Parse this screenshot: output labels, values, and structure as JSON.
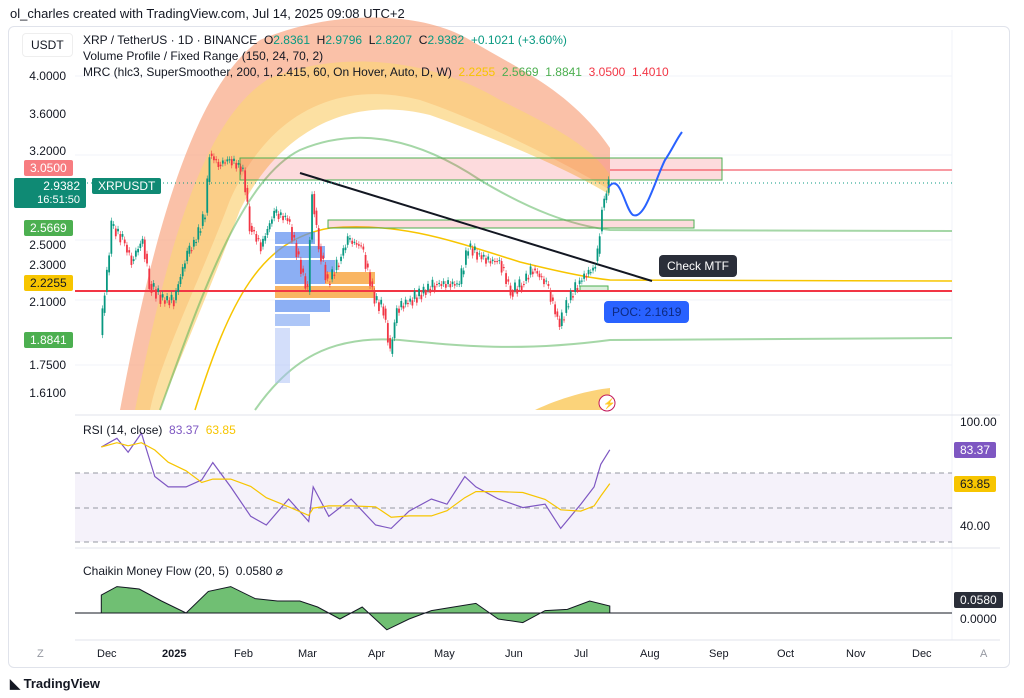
{
  "header": {
    "credit": "ol_charles created with TradingView.com, Jul 14, 2025 09:08 UTC+2",
    "currency": "USDT"
  },
  "legend": {
    "symbol": "XRP / TetherUS · 1D · BINANCE",
    "o_label": "O",
    "o": "2.8361",
    "h_label": "H",
    "h": "2.9796",
    "l_label": "L",
    "l": "2.8207",
    "c_label": "C",
    "c": "2.9382",
    "change": "+0.1021 (+3.60%)",
    "vp": "Volume Profile / Fixed Range (150, 24, 70, 2)",
    "mrc": "MRC (hlc3, SuperSmoother, 200, 1, 2.415, 60, On Hover, Auto, D, W)",
    "mrc_values": [
      "2.2255",
      "2.5669",
      "1.8841",
      "3.0500",
      "1.4010"
    ]
  },
  "colors": {
    "up": "#089981",
    "down": "#f23645",
    "rsi": "#7e57c2",
    "rsi_ma": "#f7c500",
    "poc": "#2962ff",
    "mrc_mean": "#f7c500",
    "mrc_inner": "#4caf50"
  },
  "price_axis": {
    "ticks": [
      "4.0000",
      "3.6000",
      "3.2000",
      "2.5000",
      "2.3000",
      "2.1000",
      "1.7500",
      "1.6100"
    ],
    "scale": "log"
  },
  "price_tags": {
    "upper": "3.0500",
    "last": "2.9382",
    "countdown": "16:51:50",
    "symbol": "XRPUSDT",
    "inner_upper": "2.5669",
    "mean": "2.2255",
    "inner_lower": "1.8841"
  },
  "annotations": {
    "check": "Check MTF",
    "poc": "POC: 2.1619"
  },
  "rsi": {
    "title": "RSI (14, close)",
    "value": "83.37",
    "ma": "63.85",
    "ticks": [
      "100.00",
      "40.00"
    ]
  },
  "cmf": {
    "title": "Chaikin Money Flow (20, 5)",
    "value": "0.0580",
    "tick": "0.0000"
  },
  "time_axis": {
    "labels": [
      "Dec",
      "2025",
      "Feb",
      "Mar",
      "Apr",
      "May",
      "Jun",
      "Jul",
      "Aug",
      "Sep",
      "Oct",
      "Nov",
      "Dec"
    ],
    "left_btn": "Z",
    "right_btn": "A"
  },
  "footer": {
    "brand": "TradingView"
  },
  "chart_data": {
    "type": "candlestick",
    "series": [
      {
        "x": [
          "2024-11-28",
          "2024-12-02",
          "2024-12-03",
          "2024-12-08",
          "2024-12-12",
          "2024-12-17",
          "2024-12-20",
          "2024-12-26",
          "2024-12-31",
          "2025-01-06",
          "2025-01-10",
          "2025-01-14",
          "2025-01-16",
          "2025-01-20",
          "2025-01-25",
          "2025-01-31",
          "2025-02-03",
          "2025-02-08",
          "2025-02-14",
          "2025-02-20",
          "2025-02-26",
          "2025-03-01",
          "2025-03-03",
          "2025-03-06",
          "2025-03-10",
          "2025-03-15",
          "2025-03-19",
          "2025-03-25",
          "2025-03-31",
          "2025-04-04",
          "2025-04-07",
          "2025-04-10",
          "2025-04-16",
          "2025-04-22",
          "2025-04-27",
          "2025-05-02",
          "2025-05-08",
          "2025-05-12",
          "2025-05-16",
          "2025-05-21",
          "2025-05-26",
          "2025-05-31",
          "2025-06-05",
          "2025-06-10",
          "2025-06-16",
          "2025-06-22",
          "2025-06-26",
          "2025-06-30",
          "2025-07-03",
          "2025-07-07",
          "2025-07-09",
          "2025-07-10",
          "2025-07-11",
          "2025-07-13",
          "2025-07-14"
        ],
        "close": [
          1.9,
          2.4,
          2.6,
          2.5,
          2.35,
          2.5,
          2.2,
          2.1,
          2.1,
          2.4,
          2.5,
          2.7,
          3.2,
          3.1,
          3.15,
          3.05,
          2.6,
          2.45,
          2.7,
          2.65,
          2.3,
          2.15,
          2.85,
          2.45,
          2.2,
          2.35,
          2.5,
          2.45,
          2.1,
          2.05,
          1.8,
          2.05,
          2.1,
          2.15,
          2.2,
          2.2,
          2.2,
          2.45,
          2.4,
          2.35,
          2.35,
          2.15,
          2.2,
          2.3,
          2.2,
          1.95,
          2.1,
          2.2,
          2.25,
          2.3,
          2.4,
          2.56,
          2.74,
          2.86,
          2.9382
        ]
      }
    ],
    "levels": {
      "mrc_mean": 2.2255,
      "mrc_inner_upper": 2.5669,
      "mrc_inner_lower": 1.8841,
      "mrc_outer_upper": 3.05,
      "poc": 2.1619
    },
    "rsi": {
      "x": [
        "2024-11-28",
        "2024-12-05",
        "2024-12-10",
        "2024-12-16",
        "2024-12-22",
        "2024-12-28",
        "2025-01-05",
        "2025-01-12",
        "2025-01-17",
        "2025-01-25",
        "2025-02-03",
        "2025-02-10",
        "2025-02-20",
        "2025-03-01",
        "2025-03-03",
        "2025-03-10",
        "2025-03-20",
        "2025-03-31",
        "2025-04-07",
        "2025-04-15",
        "2025-04-25",
        "2025-05-02",
        "2025-05-10",
        "2025-05-15",
        "2025-05-25",
        "2025-06-05",
        "2025-06-15",
        "2025-06-22",
        "2025-07-01",
        "2025-07-07",
        "2025-07-10",
        "2025-07-14"
      ],
      "values": [
        85,
        90,
        82,
        93,
        68,
        62,
        62,
        66,
        76,
        62,
        45,
        40,
        55,
        42,
        62,
        45,
        55,
        40,
        38,
        48,
        55,
        52,
        68,
        62,
        55,
        50,
        52,
        38,
        52,
        62,
        75,
        83.37
      ]
    },
    "cmf": {
      "x": [
        "2024-11-28",
        "2024-12-05",
        "2024-12-15",
        "2024-12-25",
        "2025-01-05",
        "2025-01-15",
        "2025-01-25",
        "2025-02-05",
        "2025-02-15",
        "2025-02-25",
        "2025-03-05",
        "2025-03-15",
        "2025-03-25",
        "2025-04-05",
        "2025-04-15",
        "2025-04-25",
        "2025-05-05",
        "2025-05-15",
        "2025-05-25",
        "2025-06-05",
        "2025-06-15",
        "2025-06-25",
        "2025-07-05",
        "2025-07-14"
      ],
      "values": [
        0.15,
        0.22,
        0.2,
        0.1,
        0.0,
        0.18,
        0.22,
        0.12,
        0.1,
        0.1,
        0.05,
        -0.05,
        0.05,
        -0.14,
        -0.05,
        0.02,
        0.05,
        0.08,
        -0.05,
        -0.08,
        0.02,
        0.03,
        0.1,
        0.058
      ]
    },
    "rsi_range": [
      20,
      100
    ],
    "rsi_bands": [
      70,
      50,
      30
    ],
    "xlim": [
      "2024-11-16",
      "2025-12-31"
    ],
    "ylim": [
      1.5,
      4.4
    ]
  }
}
